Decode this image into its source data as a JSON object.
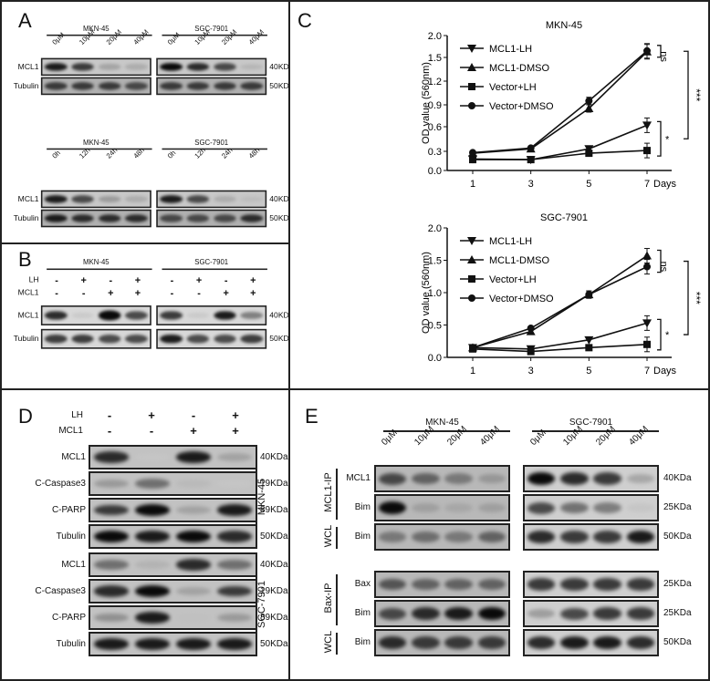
{
  "figure": {
    "panels": {
      "A": {
        "label": "A",
        "dose": {
          "cell_lines": [
            "MKN-45",
            "SGC-7901"
          ],
          "lanes": [
            "0μM",
            "10μM",
            "20μM",
            "40μM"
          ],
          "rows": [
            {
              "protein": "MCL1",
              "kda": "40KDa",
              "intensity": [
                [
                  0.95,
                  0.85,
                  0.4,
                  0.35
                ],
                [
                  1.0,
                  0.9,
                  0.8,
                  0.3
                ]
              ]
            },
            {
              "protein": "Tubulin",
              "kda": "50KDa",
              "intensity": [
                [
                  0.85,
                  0.85,
                  0.85,
                  0.8
                ],
                [
                  0.85,
                  0.85,
                  0.85,
                  0.85
                ]
              ]
            }
          ]
        },
        "time": {
          "cell_lines": [
            "MKN-45",
            "SGC-7901"
          ],
          "lanes": [
            "0h",
            "12h",
            "24h",
            "48h"
          ],
          "rows": [
            {
              "protein": "MCL1",
              "kda": "40KDa",
              "intensity": [
                [
                  0.95,
                  0.8,
                  0.45,
                  0.35
                ],
                [
                  0.95,
                  0.8,
                  0.35,
                  0.25
                ]
              ]
            },
            {
              "protein": "Tubulin",
              "kda": "50KDa",
              "intensity": [
                [
                  0.95,
                  0.9,
                  0.9,
                  0.9
                ],
                [
                  0.8,
                  0.8,
                  0.8,
                  0.9
                ]
              ]
            }
          ]
        }
      },
      "B": {
        "label": "B",
        "cell_lines": [
          "MKN-45",
          "SGC-7901"
        ],
        "conditions": [
          {
            "name": "LH",
            "values": [
              "-",
              "+",
              "-",
              "+"
            ]
          },
          {
            "name": "MCL1",
            "values": [
              "-",
              "-",
              "+",
              "+"
            ]
          }
        ],
        "rows": [
          {
            "protein": "MCL1",
            "kda": "40KDa",
            "intensity": [
              [
                0.9,
                0.2,
                1.0,
                0.8
              ],
              [
                0.85,
                0.2,
                0.95,
                0.6
              ]
            ]
          },
          {
            "protein": "Tubulin",
            "kda": "50KDa",
            "intensity": [
              [
                0.85,
                0.85,
                0.8,
                0.8
              ],
              [
                0.95,
                0.8,
                0.8,
                0.85
              ]
            ]
          }
        ]
      },
      "C": {
        "label": "C",
        "xunit": "Days",
        "ylabel": "OD value (560nm)"
      },
      "D": {
        "label": "D",
        "conditions": [
          {
            "name": "LH",
            "values": [
              "-",
              "+",
              "-",
              "+"
            ]
          },
          {
            "name": "MCL1",
            "values": [
              "-",
              "-",
              "+",
              "+"
            ]
          }
        ],
        "groups": [
          {
            "cell_line": "MKN-45",
            "rows": [
              {
                "protein": "MCL1",
                "kda": "40KDa",
                "intensity": [
                  0.9,
                  0.15,
                  0.95,
                  0.4
                ]
              },
              {
                "protein": "C-Caspase3",
                "kda": "19KDa",
                "intensity": [
                  0.45,
                  0.65,
                  0.25,
                  0.15
                ]
              },
              {
                "protein": "C-PARP",
                "kda": "89KDa",
                "intensity": [
                  0.85,
                  1.0,
                  0.4,
                  0.95
                ]
              },
              {
                "protein": "Tubulin",
                "kda": "50KDa",
                "intensity": [
                  1.0,
                  0.95,
                  1.0,
                  0.9
                ]
              }
            ]
          },
          {
            "cell_line": "SGC-7901",
            "rows": [
              {
                "protein": "MCL1",
                "kda": "40KDa",
                "intensity": [
                  0.65,
                  0.3,
                  0.9,
                  0.65
                ]
              },
              {
                "protein": "C-Caspase3",
                "kda": "19KDa",
                "intensity": [
                  0.9,
                  1.0,
                  0.4,
                  0.85
                ]
              },
              {
                "protein": "C-PARP",
                "kda": "89KDa",
                "intensity": [
                  0.5,
                  0.95,
                  0.2,
                  0.45
                ]
              },
              {
                "protein": "Tubulin",
                "kda": "50KDa",
                "intensity": [
                  0.95,
                  0.95,
                  0.95,
                  0.95
                ]
              }
            ]
          }
        ]
      },
      "E": {
        "label": "E",
        "cell_lines": [
          "MKN-45",
          "SGC-7901"
        ],
        "lanes": [
          "0μM",
          "10μM",
          "20μM",
          "40μM"
        ],
        "groups": [
          {
            "name": "MCL1-IP",
            "rows": [
              {
                "protein": "MCL1",
                "kda": "40KDa",
                "intensity": [
                  [
                    0.8,
                    0.7,
                    0.6,
                    0.45
                  ],
                  [
                    1.0,
                    0.9,
                    0.85,
                    0.4
                  ]
                ]
              },
              {
                "protein": "Bim",
                "kda": "25KDa",
                "intensity": [
                  [
                    1.0,
                    0.4,
                    0.35,
                    0.4
                  ],
                  [
                    0.8,
                    0.65,
                    0.6,
                    0.2
                  ]
                ]
              }
            ]
          },
          {
            "name": "WCL",
            "rows": [
              {
                "protein": "Bim",
                "kda": "50KDa",
                "intensity": [
                  [
                    0.6,
                    0.65,
                    0.6,
                    0.7
                  ],
                  [
                    0.9,
                    0.85,
                    0.85,
                    0.95
                  ]
                ]
              }
            ]
          },
          {
            "name": "Bax-IP",
            "rows": [
              {
                "protein": "Bax",
                "kda": "25KDa",
                "intensity": [
                  [
                    0.75,
                    0.7,
                    0.7,
                    0.7
                  ],
                  [
                    0.85,
                    0.85,
                    0.85,
                    0.85
                  ]
                ]
              },
              {
                "protein": "Bim",
                "kda": "25KDa",
                "intensity": [
                  [
                    0.8,
                    0.9,
                    0.95,
                    1.0
                  ],
                  [
                    0.45,
                    0.8,
                    0.85,
                    0.85
                  ]
                ]
              }
            ]
          },
          {
            "name": "WCL",
            "rows": [
              {
                "protein": "Bim",
                "kda": "50KDa",
                "intensity": [
                  [
                    0.9,
                    0.85,
                    0.85,
                    0.85
                  ],
                  [
                    0.9,
                    0.95,
                    0.95,
                    0.9
                  ]
                ]
              }
            ]
          }
        ]
      }
    }
  },
  "chart_data": [
    {
      "type": "line",
      "title": "MKN-45",
      "xlabel": "Days",
      "ylabel": "OD value (560nm)",
      "x": [
        1,
        3,
        5,
        7
      ],
      "yticks": [
        "0.0",
        "0.3",
        "0.6",
        "0.9",
        "1.2",
        "1.5",
        "2.0"
      ],
      "ylim": [
        0,
        2.0
      ],
      "legend_position": "upper left",
      "series": [
        {
          "name": "MCL1-LH",
          "marker": "triangle-down",
          "values": [
            0.18,
            0.17,
            0.33,
            0.62
          ]
        },
        {
          "name": "MCL1-DMSO",
          "marker": "triangle-up",
          "values": [
            0.27,
            0.33,
            0.85,
            1.63
          ]
        },
        {
          "name": "Vector+LH",
          "marker": "square",
          "values": [
            0.17,
            0.17,
            0.27,
            0.31
          ]
        },
        {
          "name": "Vector+DMSO",
          "marker": "circle",
          "values": [
            0.28,
            0.34,
            0.95,
            1.65
          ]
        }
      ],
      "annotations": [
        "ns",
        "***",
        "*"
      ]
    },
    {
      "type": "line",
      "title": "SGC-7901",
      "xlabel": "Days",
      "ylabel": "OD value (560nm)",
      "x": [
        1,
        3,
        5,
        7
      ],
      "yticks": [
        "0.0",
        "0.5",
        "1.0",
        "1.5",
        "2.0"
      ],
      "ylim": [
        0,
        2.0
      ],
      "legend_position": "upper left",
      "series": [
        {
          "name": "MCL1-LH",
          "marker": "triangle-down",
          "values": [
            0.15,
            0.13,
            0.27,
            0.53
          ]
        },
        {
          "name": "MCL1-DMSO",
          "marker": "triangle-up",
          "values": [
            0.15,
            0.4,
            0.97,
            1.57
          ]
        },
        {
          "name": "Vector+LH",
          "marker": "square",
          "values": [
            0.13,
            0.09,
            0.15,
            0.2
          ]
        },
        {
          "name": "Vector+DMSO",
          "marker": "circle",
          "values": [
            0.15,
            0.45,
            0.97,
            1.4
          ]
        }
      ],
      "annotations": [
        "ns",
        "***",
        "*"
      ]
    }
  ]
}
